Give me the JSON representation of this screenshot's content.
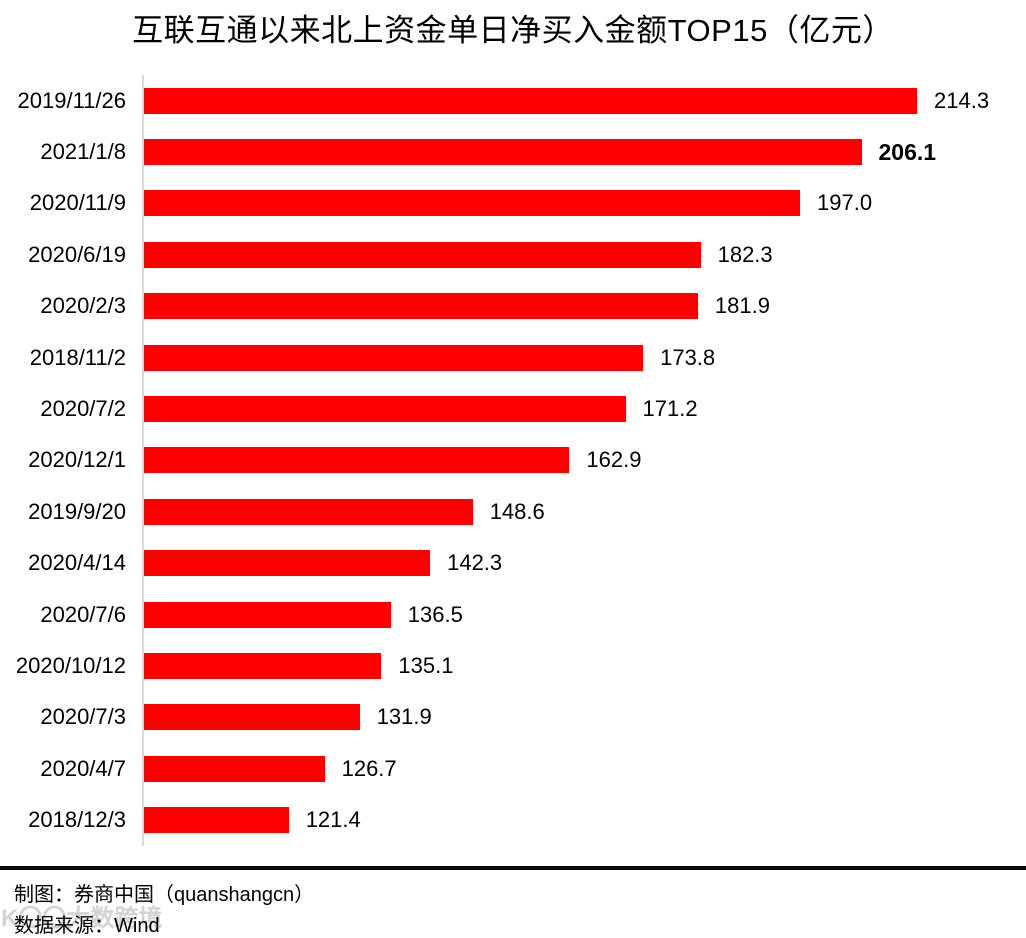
{
  "chart_data": {
    "type": "bar",
    "orientation": "horizontal",
    "title": "互联互通以来北上资金单日净买入金额TOP15（亿元）",
    "unit": "亿元",
    "categories": [
      "2019/11/26",
      "2021/1/8",
      "2020/11/9",
      "2020/6/19",
      "2020/2/3",
      "2018/11/2",
      "2020/7/2",
      "2020/12/1",
      "2019/9/20",
      "2020/4/14",
      "2020/7/6",
      "2020/10/12",
      "2020/7/3",
      "2020/4/7",
      "2018/12/3"
    ],
    "values": [
      214.3,
      206.1,
      197.0,
      182.3,
      181.9,
      173.8,
      171.2,
      162.9,
      148.6,
      142.3,
      136.5,
      135.1,
      131.9,
      126.7,
      121.4
    ],
    "value_labels": [
      "214.3",
      "206.1",
      "197.0",
      "182.3",
      "181.9",
      "173.8",
      "171.2",
      "162.9",
      "148.6",
      "142.3",
      "136.5",
      "135.1",
      "131.9",
      "126.7",
      "121.4"
    ],
    "bold_value_index": 1,
    "xlim": [
      100,
      230
    ],
    "grid": false,
    "legend": false,
    "bar_color": "#ff0000",
    "axis_line_color": "#d9d9d9"
  },
  "footer": {
    "credit": "制图：券商中国（quanshangcn）",
    "source": "数据来源：Wind",
    "watermark": "K〇〇大数跨境"
  },
  "colors": {
    "text": "#000000",
    "separator": "#0a0a0a",
    "watermark": "#c9c9c9"
  }
}
